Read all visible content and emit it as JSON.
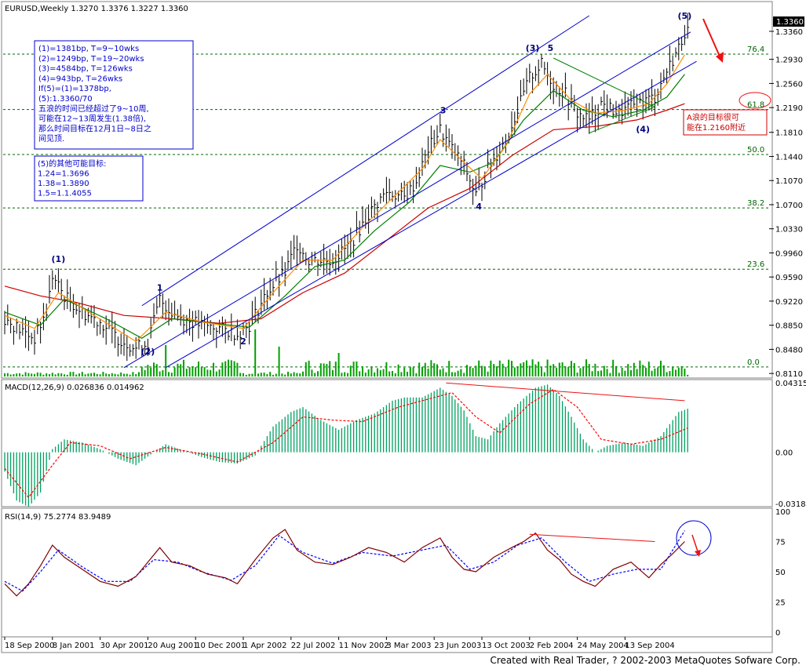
{
  "chart_data": [
    {
      "type": "candlestick",
      "title": "EURUSD,Weekly  1.3270 1.3376 1.3227 1.3360",
      "last_price_label": "1.3360",
      "ylim": [
        0.816,
        1.36
      ],
      "y_ticks": [
        "1.3360",
        "1.2930",
        "1.2560",
        "1.2190",
        "1.1810",
        "1.1440",
        "1.1070",
        "1.0700",
        "1.0330",
        "0.9960",
        "0.9590",
        "0.9220",
        "0.8850",
        "0.8480",
        "0.8110"
      ],
      "x_ticks": [
        "18 Sep 2000",
        "8 Jan 2001",
        "30 Apr 2001",
        "20 Aug 2001",
        "10 Dec 2001",
        "1 Apr 2002",
        "22 Jul 2002",
        "11 Nov 2002",
        "3 Mar 2003",
        "23 Jun 2003",
        "13 Oct 2003",
        "2 Feb 2004",
        "24 May 2004",
        "13 Sep 2004"
      ],
      "fib_levels": [
        {
          "label": "76.4",
          "value": 1.301
        },
        {
          "label": "61.8",
          "value": 1.216
        },
        {
          "label": "50.0",
          "value": 1.147
        },
        {
          "label": "38.2",
          "value": 1.065
        },
        {
          "label": "23.6",
          "value": 0.971
        },
        {
          "label": "0.0",
          "value": 0.821
        }
      ],
      "wave_labels": [
        {
          "text": "(1)",
          "week": 18,
          "price": 0.982,
          "color": "#000080"
        },
        {
          "text": "1",
          "week": 52,
          "price": 0.938,
          "color": "#000080"
        },
        {
          "text": "(2)",
          "week": 48,
          "price": 0.84,
          "color": "#000080"
        },
        {
          "text": "2",
          "week": 80,
          "price": 0.856,
          "color": "#000080"
        },
        {
          "text": "3",
          "week": 147,
          "price": 1.21,
          "color": "#000080"
        },
        {
          "text": "4",
          "week": 159,
          "price": 1.063,
          "color": "#000080"
        },
        {
          "text": "(3)",
          "week": 177,
          "price": 1.306,
          "color": "#000080"
        },
        {
          "text": "5",
          "week": 183,
          "price": 1.306,
          "color": "#000080"
        },
        {
          "text": "(4)",
          "week": 214,
          "price": 1.181,
          "color": "#000080"
        },
        {
          "text": "(5)",
          "week": 228,
          "price": 1.355,
          "color": "#000080"
        }
      ],
      "series_points": [
        [
          0,
          0.895
        ],
        [
          6,
          0.875
        ],
        [
          10,
          0.865
        ],
        [
          14,
          0.905
        ],
        [
          16,
          0.96
        ],
        [
          20,
          0.93
        ],
        [
          26,
          0.905
        ],
        [
          32,
          0.89
        ],
        [
          38,
          0.865
        ],
        [
          44,
          0.85
        ],
        [
          48,
          0.858
        ],
        [
          52,
          0.925
        ],
        [
          56,
          0.905
        ],
        [
          60,
          0.895
        ],
        [
          66,
          0.885
        ],
        [
          72,
          0.88
        ],
        [
          78,
          0.872
        ],
        [
          82,
          0.885
        ],
        [
          88,
          0.935
        ],
        [
          94,
          0.965
        ],
        [
          98,
          1.01
        ],
        [
          102,
          0.985
        ],
        [
          110,
          0.985
        ],
        [
          116,
          1.01
        ],
        [
          122,
          1.055
        ],
        [
          128,
          1.09
        ],
        [
          134,
          1.08
        ],
        [
          138,
          1.105
        ],
        [
          142,
          1.155
        ],
        [
          146,
          1.185
        ],
        [
          150,
          1.155
        ],
        [
          154,
          1.13
        ],
        [
          158,
          1.085
        ],
        [
          162,
          1.125
        ],
        [
          168,
          1.17
        ],
        [
          172,
          1.215
        ],
        [
          176,
          1.265
        ],
        [
          180,
          1.285
        ],
        [
          184,
          1.255
        ],
        [
          188,
          1.24
        ],
        [
          192,
          1.21
        ],
        [
          196,
          1.2
        ],
        [
          200,
          1.225
        ],
        [
          206,
          1.21
        ],
        [
          212,
          1.225
        ],
        [
          218,
          1.235
        ],
        [
          222,
          1.275
        ],
        [
          226,
          1.31
        ],
        [
          228,
          1.336
        ]
      ],
      "ma_fast": [
        [
          0,
          0.9
        ],
        [
          10,
          0.88
        ],
        [
          18,
          0.935
        ],
        [
          30,
          0.9
        ],
        [
          44,
          0.86
        ],
        [
          54,
          0.905
        ],
        [
          66,
          0.89
        ],
        [
          80,
          0.88
        ],
        [
          90,
          0.935
        ],
        [
          100,
          0.985
        ],
        [
          110,
          0.985
        ],
        [
          120,
          1.035
        ],
        [
          130,
          1.08
        ],
        [
          140,
          1.125
        ],
        [
          146,
          1.17
        ],
        [
          154,
          1.135
        ],
        [
          160,
          1.11
        ],
        [
          168,
          1.16
        ],
        [
          176,
          1.24
        ],
        [
          182,
          1.27
        ],
        [
          190,
          1.23
        ],
        [
          198,
          1.21
        ],
        [
          208,
          1.215
        ],
        [
          216,
          1.225
        ],
        [
          222,
          1.255
        ],
        [
          228,
          1.3
        ]
      ],
      "ma_mid": [
        [
          0,
          0.905
        ],
        [
          12,
          0.885
        ],
        [
          20,
          0.925
        ],
        [
          34,
          0.895
        ],
        [
          46,
          0.865
        ],
        [
          56,
          0.895
        ],
        [
          70,
          0.888
        ],
        [
          82,
          0.882
        ],
        [
          94,
          0.93
        ],
        [
          104,
          0.975
        ],
        [
          114,
          0.985
        ],
        [
          124,
          1.03
        ],
        [
          136,
          1.075
        ],
        [
          146,
          1.13
        ],
        [
          156,
          1.12
        ],
        [
          164,
          1.135
        ],
        [
          174,
          1.2
        ],
        [
          184,
          1.245
        ],
        [
          194,
          1.215
        ],
        [
          204,
          1.205
        ],
        [
          214,
          1.215
        ],
        [
          222,
          1.235
        ],
        [
          228,
          1.27
        ]
      ],
      "ma_slow": [
        [
          0,
          0.945
        ],
        [
          12,
          0.93
        ],
        [
          24,
          0.92
        ],
        [
          40,
          0.9
        ],
        [
          56,
          0.895
        ],
        [
          72,
          0.888
        ],
        [
          86,
          0.895
        ],
        [
          100,
          0.935
        ],
        [
          114,
          0.965
        ],
        [
          128,
          1.015
        ],
        [
          142,
          1.065
        ],
        [
          156,
          1.095
        ],
        [
          170,
          1.145
        ],
        [
          184,
          1.185
        ],
        [
          198,
          1.19
        ],
        [
          212,
          1.2
        ],
        [
          222,
          1.215
        ],
        [
          228,
          1.225
        ]
      ],
      "channel_lines": [
        {
          "from": [
            40,
            0.82
          ],
          "to": [
            230,
            1.335
          ],
          "color": "#0000cc"
        },
        {
          "from": [
            54,
            0.82
          ],
          "to": [
            232,
            1.29
          ],
          "color": "#0000cc"
        },
        {
          "from": [
            46,
            0.915
          ],
          "to": [
            196,
            1.36
          ],
          "color": "#0000cc"
        }
      ],
      "triangle": [
        [
          184,
          1.295
        ],
        [
          218,
          1.22
        ],
        [
          196,
          1.18
        ]
      ],
      "notes": [
        "(1)=1381bp, T=9~10wks",
        "(2)=1249bp, T=19~20wks",
        "(3)=4584bp, T=126wks",
        "(4)=943bp,  T=26wks",
        "If(5)=(1)=1378bp,",
        "(5):1.3360/70",
        "五浪的时间已经超过了9~10周,",
        "可能在12~13周发生(1.38倍),",
        "那么时间目标在12月1日~8日之",
        "间见顶."
      ],
      "targets": [
        "(5)的其他可能目标:",
        "1.24=1.3696",
        "1.38=1.3890",
        "1.5=1.1.4055"
      ],
      "a_wave_note": [
        "A浪的目标很可",
        "能在1.2160附近"
      ]
    },
    {
      "type": "bar",
      "title": "MACD(12,26,9)  0.026836  0.014962",
      "ylim": [
        -0.0318,
        0.04315
      ],
      "y_ticks": [
        "0.04315",
        "0.00",
        "-0.0318"
      ],
      "macd_points": [
        [
          0,
          -0.012
        ],
        [
          4,
          -0.03
        ],
        [
          8,
          -0.034
        ],
        [
          12,
          -0.025
        ],
        [
          16,
          0.002
        ],
        [
          20,
          0.008
        ],
        [
          26,
          0.006
        ],
        [
          32,
          0.002
        ],
        [
          38,
          -0.004
        ],
        [
          44,
          -0.008
        ],
        [
          50,
          0.0
        ],
        [
          54,
          0.005
        ],
        [
          60,
          0.001
        ],
        [
          66,
          -0.003
        ],
        [
          72,
          -0.006
        ],
        [
          78,
          -0.007
        ],
        [
          84,
          -0.002
        ],
        [
          90,
          0.016
        ],
        [
          96,
          0.025
        ],
        [
          100,
          0.028
        ],
        [
          106,
          0.02
        ],
        [
          112,
          0.014
        ],
        [
          118,
          0.02
        ],
        [
          124,
          0.024
        ],
        [
          130,
          0.032
        ],
        [
          134,
          0.034
        ],
        [
          140,
          0.034
        ],
        [
          146,
          0.04
        ],
        [
          150,
          0.035
        ],
        [
          154,
          0.026
        ],
        [
          158,
          0.01
        ],
        [
          162,
          0.008
        ],
        [
          166,
          0.018
        ],
        [
          172,
          0.03
        ],
        [
          178,
          0.04
        ],
        [
          182,
          0.042
        ],
        [
          186,
          0.035
        ],
        [
          190,
          0.022
        ],
        [
          194,
          0.008
        ],
        [
          198,
          0.0
        ],
        [
          202,
          0.004
        ],
        [
          208,
          0.006
        ],
        [
          214,
          0.004
        ],
        [
          220,
          0.01
        ],
        [
          226,
          0.025
        ],
        [
          229,
          0.027
        ]
      ],
      "signal_points": [
        [
          0,
          -0.01
        ],
        [
          8,
          -0.028
        ],
        [
          16,
          -0.008
        ],
        [
          22,
          0.006
        ],
        [
          32,
          0.004
        ],
        [
          42,
          -0.004
        ],
        [
          54,
          0.003
        ],
        [
          66,
          -0.001
        ],
        [
          78,
          -0.006
        ],
        [
          90,
          0.006
        ],
        [
          100,
          0.022
        ],
        [
          110,
          0.02
        ],
        [
          120,
          0.019
        ],
        [
          132,
          0.028
        ],
        [
          142,
          0.033
        ],
        [
          150,
          0.037
        ],
        [
          158,
          0.022
        ],
        [
          166,
          0.012
        ],
        [
          176,
          0.03
        ],
        [
          184,
          0.039
        ],
        [
          192,
          0.028
        ],
        [
          200,
          0.008
        ],
        [
          210,
          0.005
        ],
        [
          220,
          0.008
        ],
        [
          229,
          0.015
        ]
      ],
      "divergence_line": {
        "from": [
          148,
          0.043
        ],
        "to": [
          228,
          0.032
        ],
        "color": "#ee1111"
      }
    },
    {
      "type": "line",
      "title": "RSI(14,9)  75.2774  83.9489",
      "ylim": [
        0,
        100
      ],
      "y_ticks": [
        "100",
        "75",
        "50",
        "25",
        "0"
      ],
      "rsi_points": [
        [
          0,
          40
        ],
        [
          4,
          30
        ],
        [
          8,
          40
        ],
        [
          12,
          55
        ],
        [
          16,
          72
        ],
        [
          20,
          62
        ],
        [
          26,
          52
        ],
        [
          32,
          42
        ],
        [
          38,
          38
        ],
        [
          44,
          46
        ],
        [
          48,
          58
        ],
        [
          52,
          70
        ],
        [
          56,
          58
        ],
        [
          62,
          55
        ],
        [
          68,
          48
        ],
        [
          74,
          45
        ],
        [
          78,
          40
        ],
        [
          84,
          60
        ],
        [
          90,
          78
        ],
        [
          94,
          85
        ],
        [
          98,
          68
        ],
        [
          104,
          58
        ],
        [
          110,
          56
        ],
        [
          116,
          62
        ],
        [
          122,
          70
        ],
        [
          128,
          66
        ],
        [
          134,
          58
        ],
        [
          140,
          70
        ],
        [
          146,
          78
        ],
        [
          150,
          62
        ],
        [
          154,
          52
        ],
        [
          158,
          50
        ],
        [
          164,
          62
        ],
        [
          170,
          70
        ],
        [
          174,
          75
        ],
        [
          178,
          82
        ],
        [
          182,
          68
        ],
        [
          186,
          60
        ],
        [
          190,
          48
        ],
        [
          194,
          42
        ],
        [
          198,
          38
        ],
        [
          204,
          52
        ],
        [
          210,
          58
        ],
        [
          216,
          45
        ],
        [
          220,
          56
        ],
        [
          224,
          65
        ],
        [
          228,
          75
        ]
      ],
      "signal_points": [
        [
          0,
          42
        ],
        [
          6,
          34
        ],
        [
          12,
          50
        ],
        [
          18,
          68
        ],
        [
          26,
          54
        ],
        [
          34,
          42
        ],
        [
          42,
          42
        ],
        [
          50,
          60
        ],
        [
          58,
          58
        ],
        [
          66,
          50
        ],
        [
          76,
          43
        ],
        [
          84,
          55
        ],
        [
          92,
          80
        ],
        [
          100,
          66
        ],
        [
          110,
          57
        ],
        [
          120,
          66
        ],
        [
          130,
          63
        ],
        [
          140,
          68
        ],
        [
          148,
          72
        ],
        [
          156,
          52
        ],
        [
          164,
          58
        ],
        [
          172,
          72
        ],
        [
          180,
          78
        ],
        [
          188,
          58
        ],
        [
          196,
          42
        ],
        [
          204,
          48
        ],
        [
          212,
          52
        ],
        [
          220,
          52
        ],
        [
          228,
          84
        ]
      ],
      "divergence_line": {
        "from": [
          176,
          81
        ],
        "to": [
          218,
          75
        ],
        "color": "#ee1111"
      }
    }
  ],
  "footer": {
    "credit": "Created with Real Trader, ? 2002-2003 MetaQuotes Sofware Corp."
  },
  "colors": {
    "price": "#000000",
    "ma_fast": "#ff8c00",
    "ma_mid": "#008000",
    "ma_slow": "#cc0000",
    "channel": "#0000cc",
    "fib": "#006400",
    "macd_hist": "#00a060",
    "signal": "#ff0000",
    "rsi": "#800000",
    "rsi_signal": "#0000ff",
    "volume": "#00a000",
    "annotation": "#0000cc"
  }
}
